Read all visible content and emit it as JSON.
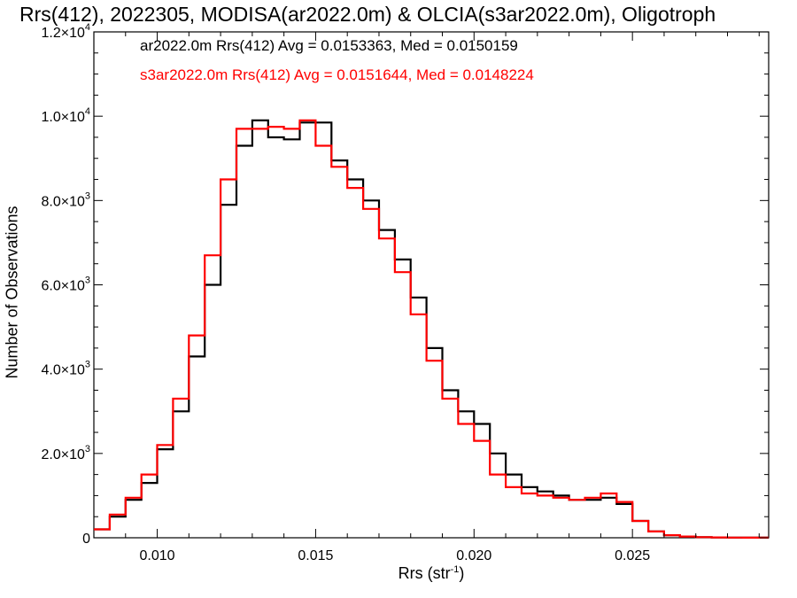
{
  "chart_data": {
    "type": "line",
    "title": "Rrs(412), 2022305, MODISA(ar2022.0m) & OLCIA(s3ar2022.0m), Oligotroph",
    "xlabel": "Rrs (str",
    "xlabel_exp": "-1",
    "xlabel_close": ")",
    "ylabel": "Number of Observations",
    "xlim": [
      0.008,
      0.0293
    ],
    "ylim": [
      0,
      12000
    ],
    "xticks": [
      0.01,
      0.015,
      0.02,
      0.025
    ],
    "xtick_labels": [
      "0.010",
      "0.015",
      "0.020",
      "0.025"
    ],
    "yticks": [
      0,
      2000,
      4000,
      6000,
      8000,
      10000,
      12000
    ],
    "ytick_labels": [
      {
        "mant": "0",
        "exp": ""
      },
      {
        "mant": "2.0×10",
        "exp": "3"
      },
      {
        "mant": "4.0×10",
        "exp": "3"
      },
      {
        "mant": "6.0×10",
        "exp": "3"
      },
      {
        "mant": "8.0×10",
        "exp": "3"
      },
      {
        "mant": "1.0×10",
        "exp": "4"
      },
      {
        "mant": "1.2×10",
        "exp": "4"
      }
    ],
    "grid": false,
    "legend_position": "top-left",
    "series": [
      {
        "name": "ar2022.0m Rrs(412) Avg = 0.0153363, Med = 0.0150159",
        "color": "#000000",
        "x": [
          0.008,
          0.0085,
          0.009,
          0.0095,
          0.01,
          0.0105,
          0.011,
          0.0115,
          0.012,
          0.0125,
          0.013,
          0.0135,
          0.014,
          0.0145,
          0.015,
          0.0155,
          0.016,
          0.0165,
          0.017,
          0.0175,
          0.018,
          0.0185,
          0.019,
          0.0195,
          0.02,
          0.0205,
          0.021,
          0.0215,
          0.022,
          0.0225,
          0.023,
          0.0235,
          0.024,
          0.0245,
          0.025,
          0.0255,
          0.026,
          0.0265,
          0.027,
          0.0275,
          0.028,
          0.0285,
          0.029
        ],
        "y": [
          200,
          500,
          900,
          1300,
          2100,
          3000,
          4300,
          6000,
          7900,
          9300,
          9900,
          9500,
          9450,
          9850,
          9850,
          8950,
          8500,
          8000,
          7300,
          6600,
          5700,
          4500,
          3500,
          3000,
          2700,
          2000,
          1500,
          1200,
          1100,
          1000,
          900,
          900,
          950,
          800,
          400,
          150,
          60,
          30,
          15,
          8,
          5,
          3,
          2
        ]
      },
      {
        "name": "s3ar2022.0m Rrs(412) Avg = 0.0151644, Med = 0.0148224",
        "color": "#ff0000",
        "x": [
          0.008,
          0.0085,
          0.009,
          0.0095,
          0.01,
          0.0105,
          0.011,
          0.0115,
          0.012,
          0.0125,
          0.013,
          0.0135,
          0.014,
          0.0145,
          0.015,
          0.0155,
          0.016,
          0.0165,
          0.017,
          0.0175,
          0.018,
          0.0185,
          0.019,
          0.0195,
          0.02,
          0.0205,
          0.021,
          0.0215,
          0.022,
          0.0225,
          0.023,
          0.0235,
          0.024,
          0.0245,
          0.025,
          0.0255,
          0.026,
          0.0265,
          0.027,
          0.0275,
          0.028,
          0.0285,
          0.029
        ],
        "y": [
          200,
          550,
          950,
          1500,
          2200,
          3300,
          4800,
          6700,
          8500,
          9700,
          9700,
          9750,
          9700,
          9900,
          9300,
          8800,
          8300,
          7800,
          7100,
          6300,
          5300,
          4200,
          3300,
          2700,
          2300,
          1500,
          1200,
          1050,
          1000,
          950,
          900,
          950,
          1050,
          850,
          400,
          150,
          60,
          30,
          15,
          8,
          5,
          3,
          2
        ]
      }
    ]
  }
}
